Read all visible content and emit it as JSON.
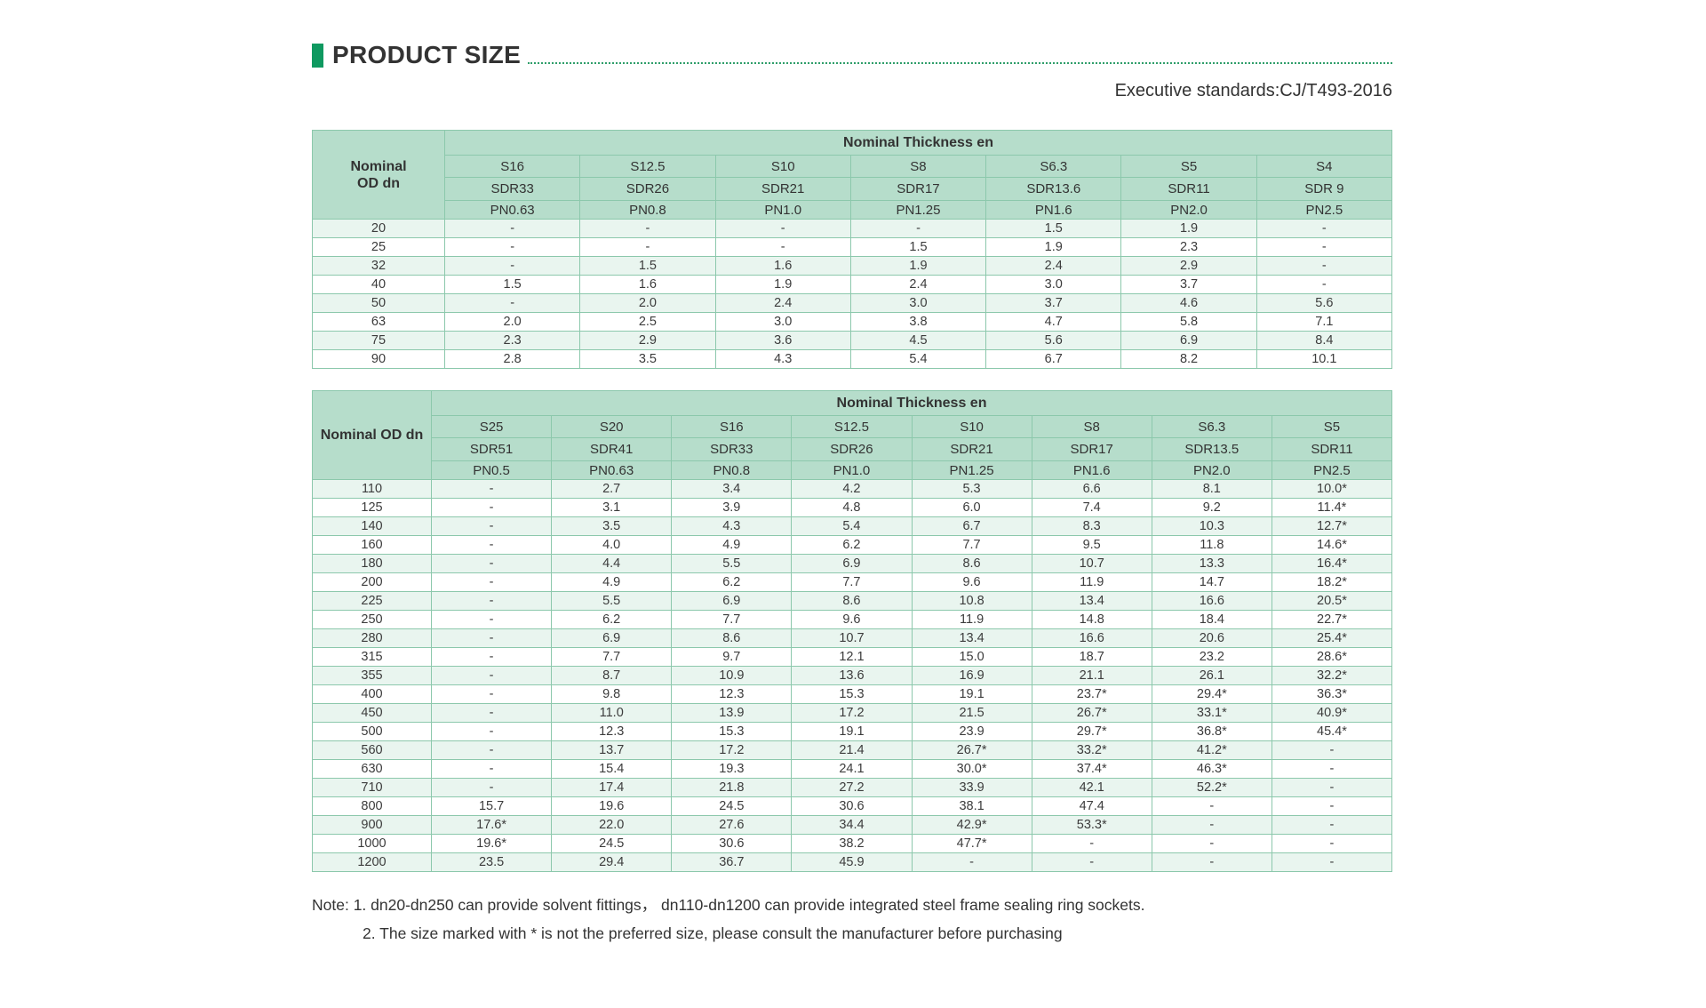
{
  "page": {
    "title": "PRODUCT SIZE",
    "standards": "Executive standards:CJ/T493-2016"
  },
  "colors": {
    "accent_green": "#0f9960",
    "dotted_line": "#2f9e6a",
    "table_header_bg": "#b6ddcb",
    "alt_row_bg": "#e9f5ef",
    "table_border": "#8cc8ac",
    "text": "#3c3c3c"
  },
  "table1": {
    "corner_lines": [
      "Nominal",
      "OD dn"
    ],
    "group_header": "Nominal Thickness en",
    "s_labels": [
      "S16",
      "S12.5",
      "S10",
      "S8",
      "S6.3",
      "S5",
      "S4"
    ],
    "sdr_labels": [
      "SDR33",
      "SDR26",
      "SDR21",
      "SDR17",
      "SDR13.6",
      "SDR11",
      "SDR 9"
    ],
    "pn_labels": [
      "PN0.63",
      "PN0.8",
      "PN1.0",
      "PN1.25",
      "PN1.6",
      "PN2.0",
      "PN2.5"
    ],
    "rows": [
      {
        "dn": "20",
        "values": [
          "-",
          "-",
          "-",
          "-",
          "1.5",
          "1.9",
          "-"
        ]
      },
      {
        "dn": "25",
        "values": [
          "-",
          "-",
          "-",
          "1.5",
          "1.9",
          "2.3",
          "-"
        ]
      },
      {
        "dn": "32",
        "values": [
          "-",
          "1.5",
          "1.6",
          "1.9",
          "2.4",
          "2.9",
          "-"
        ]
      },
      {
        "dn": "40",
        "values": [
          "1.5",
          "1.6",
          "1.9",
          "2.4",
          "3.0",
          "3.7",
          "-"
        ]
      },
      {
        "dn": "50",
        "values": [
          "-",
          "2.0",
          "2.4",
          "3.0",
          "3.7",
          "4.6",
          "5.6"
        ]
      },
      {
        "dn": "63",
        "values": [
          "2.0",
          "2.5",
          "3.0",
          "3.8",
          "4.7",
          "5.8",
          "7.1"
        ]
      },
      {
        "dn": "75",
        "values": [
          "2.3",
          "2.9",
          "3.6",
          "4.5",
          "5.6",
          "6.9",
          "8.4"
        ]
      },
      {
        "dn": "90",
        "values": [
          "2.8",
          "3.5",
          "4.3",
          "5.4",
          "6.7",
          "8.2",
          "10.1"
        ]
      }
    ]
  },
  "table2": {
    "corner_lines": [
      "Nominal OD dn"
    ],
    "group_header": "Nominal Thickness en",
    "s_labels": [
      "S25",
      "S20",
      "S16",
      "S12.5",
      "S10",
      "S8",
      "S6.3",
      "S5"
    ],
    "sdr_labels": [
      "SDR51",
      "SDR41",
      "SDR33",
      "SDR26",
      "SDR21",
      "SDR17",
      "SDR13.5",
      "SDR11"
    ],
    "pn_labels": [
      "PN0.5",
      "PN0.63",
      "PN0.8",
      "PN1.0",
      "PN1.25",
      "PN1.6",
      "PN2.0",
      "PN2.5"
    ],
    "rows": [
      {
        "dn": "110",
        "values": [
          "-",
          "2.7",
          "3.4",
          "4.2",
          "5.3",
          "6.6",
          "8.1",
          "10.0*"
        ]
      },
      {
        "dn": "125",
        "values": [
          "-",
          "3.1",
          "3.9",
          "4.8",
          "6.0",
          "7.4",
          "9.2",
          "11.4*"
        ]
      },
      {
        "dn": "140",
        "values": [
          "-",
          "3.5",
          "4.3",
          "5.4",
          "6.7",
          "8.3",
          "10.3",
          "12.7*"
        ]
      },
      {
        "dn": "160",
        "values": [
          "-",
          "4.0",
          "4.9",
          "6.2",
          "7.7",
          "9.5",
          "11.8",
          "14.6*"
        ]
      },
      {
        "dn": "180",
        "values": [
          "-",
          "4.4",
          "5.5",
          "6.9",
          "8.6",
          "10.7",
          "13.3",
          "16.4*"
        ]
      },
      {
        "dn": "200",
        "values": [
          "-",
          "4.9",
          "6.2",
          "7.7",
          "9.6",
          "11.9",
          "14.7",
          "18.2*"
        ]
      },
      {
        "dn": "225",
        "values": [
          "-",
          "5.5",
          "6.9",
          "8.6",
          "10.8",
          "13.4",
          "16.6",
          "20.5*"
        ]
      },
      {
        "dn": "250",
        "values": [
          "-",
          "6.2",
          "7.7",
          "9.6",
          "11.9",
          "14.8",
          "18.4",
          "22.7*"
        ]
      },
      {
        "dn": "280",
        "values": [
          "-",
          "6.9",
          "8.6",
          "10.7",
          "13.4",
          "16.6",
          "20.6",
          "25.4*"
        ]
      },
      {
        "dn": "315",
        "values": [
          "-",
          "7.7",
          "9.7",
          "12.1",
          "15.0",
          "18.7",
          "23.2",
          "28.6*"
        ]
      },
      {
        "dn": "355",
        "values": [
          "-",
          "8.7",
          "10.9",
          "13.6",
          "16.9",
          "21.1",
          "26.1",
          "32.2*"
        ]
      },
      {
        "dn": "400",
        "values": [
          "-",
          "9.8",
          "12.3",
          "15.3",
          "19.1",
          "23.7*",
          "29.4*",
          "36.3*"
        ]
      },
      {
        "dn": "450",
        "values": [
          "-",
          "11.0",
          "13.9",
          "17.2",
          "21.5",
          "26.7*",
          "33.1*",
          "40.9*"
        ]
      },
      {
        "dn": "500",
        "values": [
          "-",
          "12.3",
          "15.3",
          "19.1",
          "23.9",
          "29.7*",
          "36.8*",
          "45.4*"
        ]
      },
      {
        "dn": "560",
        "values": [
          "-",
          "13.7",
          "17.2",
          "21.4",
          "26.7*",
          "33.2*",
          "41.2*",
          "-"
        ]
      },
      {
        "dn": "630",
        "values": [
          "-",
          "15.4",
          "19.3",
          "24.1",
          "30.0*",
          "37.4*",
          "46.3*",
          "-"
        ]
      },
      {
        "dn": "710",
        "values": [
          "-",
          "17.4",
          "21.8",
          "27.2",
          "33.9",
          "42.1",
          "52.2*",
          "-"
        ]
      },
      {
        "dn": "800",
        "values": [
          "15.7",
          "19.6",
          "24.5",
          "30.6",
          "38.1",
          "47.4",
          "-",
          "-"
        ]
      },
      {
        "dn": "900",
        "values": [
          "17.6*",
          "22.0",
          "27.6",
          "34.4",
          "42.9*",
          "53.3*",
          "-",
          "-"
        ]
      },
      {
        "dn": "1000",
        "values": [
          "19.6*",
          "24.5",
          "30.6",
          "38.2",
          "47.7*",
          "-",
          "-",
          "-"
        ]
      },
      {
        "dn": "1200",
        "values": [
          "23.5",
          "29.4",
          "36.7",
          "45.9",
          "-",
          "-",
          "-",
          "-"
        ]
      }
    ]
  },
  "notes": {
    "line1": "Note: 1. dn20-dn250 can provide solvent fittings， dn110-dn1200 can provide integrated steel frame sealing ring sockets.",
    "line2": "2. The size marked with * is not the preferred size, please consult the manufacturer before purchasing"
  }
}
